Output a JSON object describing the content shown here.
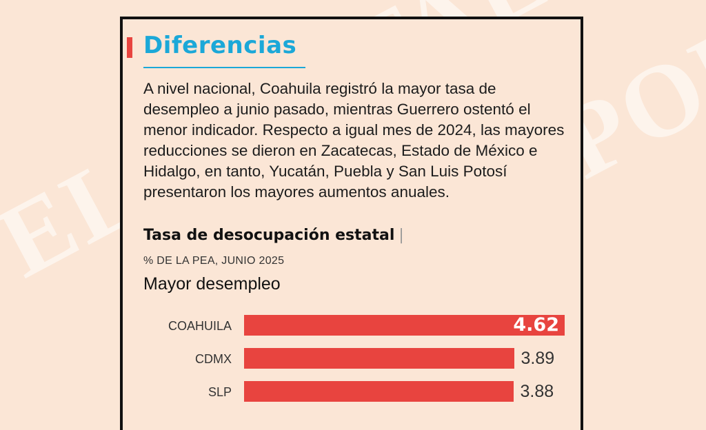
{
  "watermark": "EL PORTAL",
  "header": {
    "title": "Diferencias",
    "accent_color": "#e8443f",
    "title_color": "#1ba8d8"
  },
  "body_text": "A nivel nacional, Coahuila registró la mayor tasa de desempleo a junio pasado, mientras Guerrero ostentó el menor indicador. Respecto a igual mes de 2024, las mayores reducciones se dieron en Zacatecas, Estado de México e Hidalgo, en tanto, Yucatán, Puebla y San Luis Potosí presentaron los mayores aumentos anuales.",
  "chart_data": {
    "type": "bar",
    "orientation": "horizontal",
    "title": "Tasa de desocupación estatal",
    "title_separator": "|",
    "subtitle": "% DE LA PEA, JUNIO 2025",
    "group_label": "Mayor desempleo",
    "categories": [
      "COAHUILA",
      "CDMX",
      "SLP"
    ],
    "values": [
      4.62,
      3.89,
      3.88
    ],
    "value_labels": [
      "4.62",
      "3.89",
      "3.88"
    ],
    "bar_color": "#e8443f",
    "xlim": [
      0,
      4.65
    ]
  }
}
